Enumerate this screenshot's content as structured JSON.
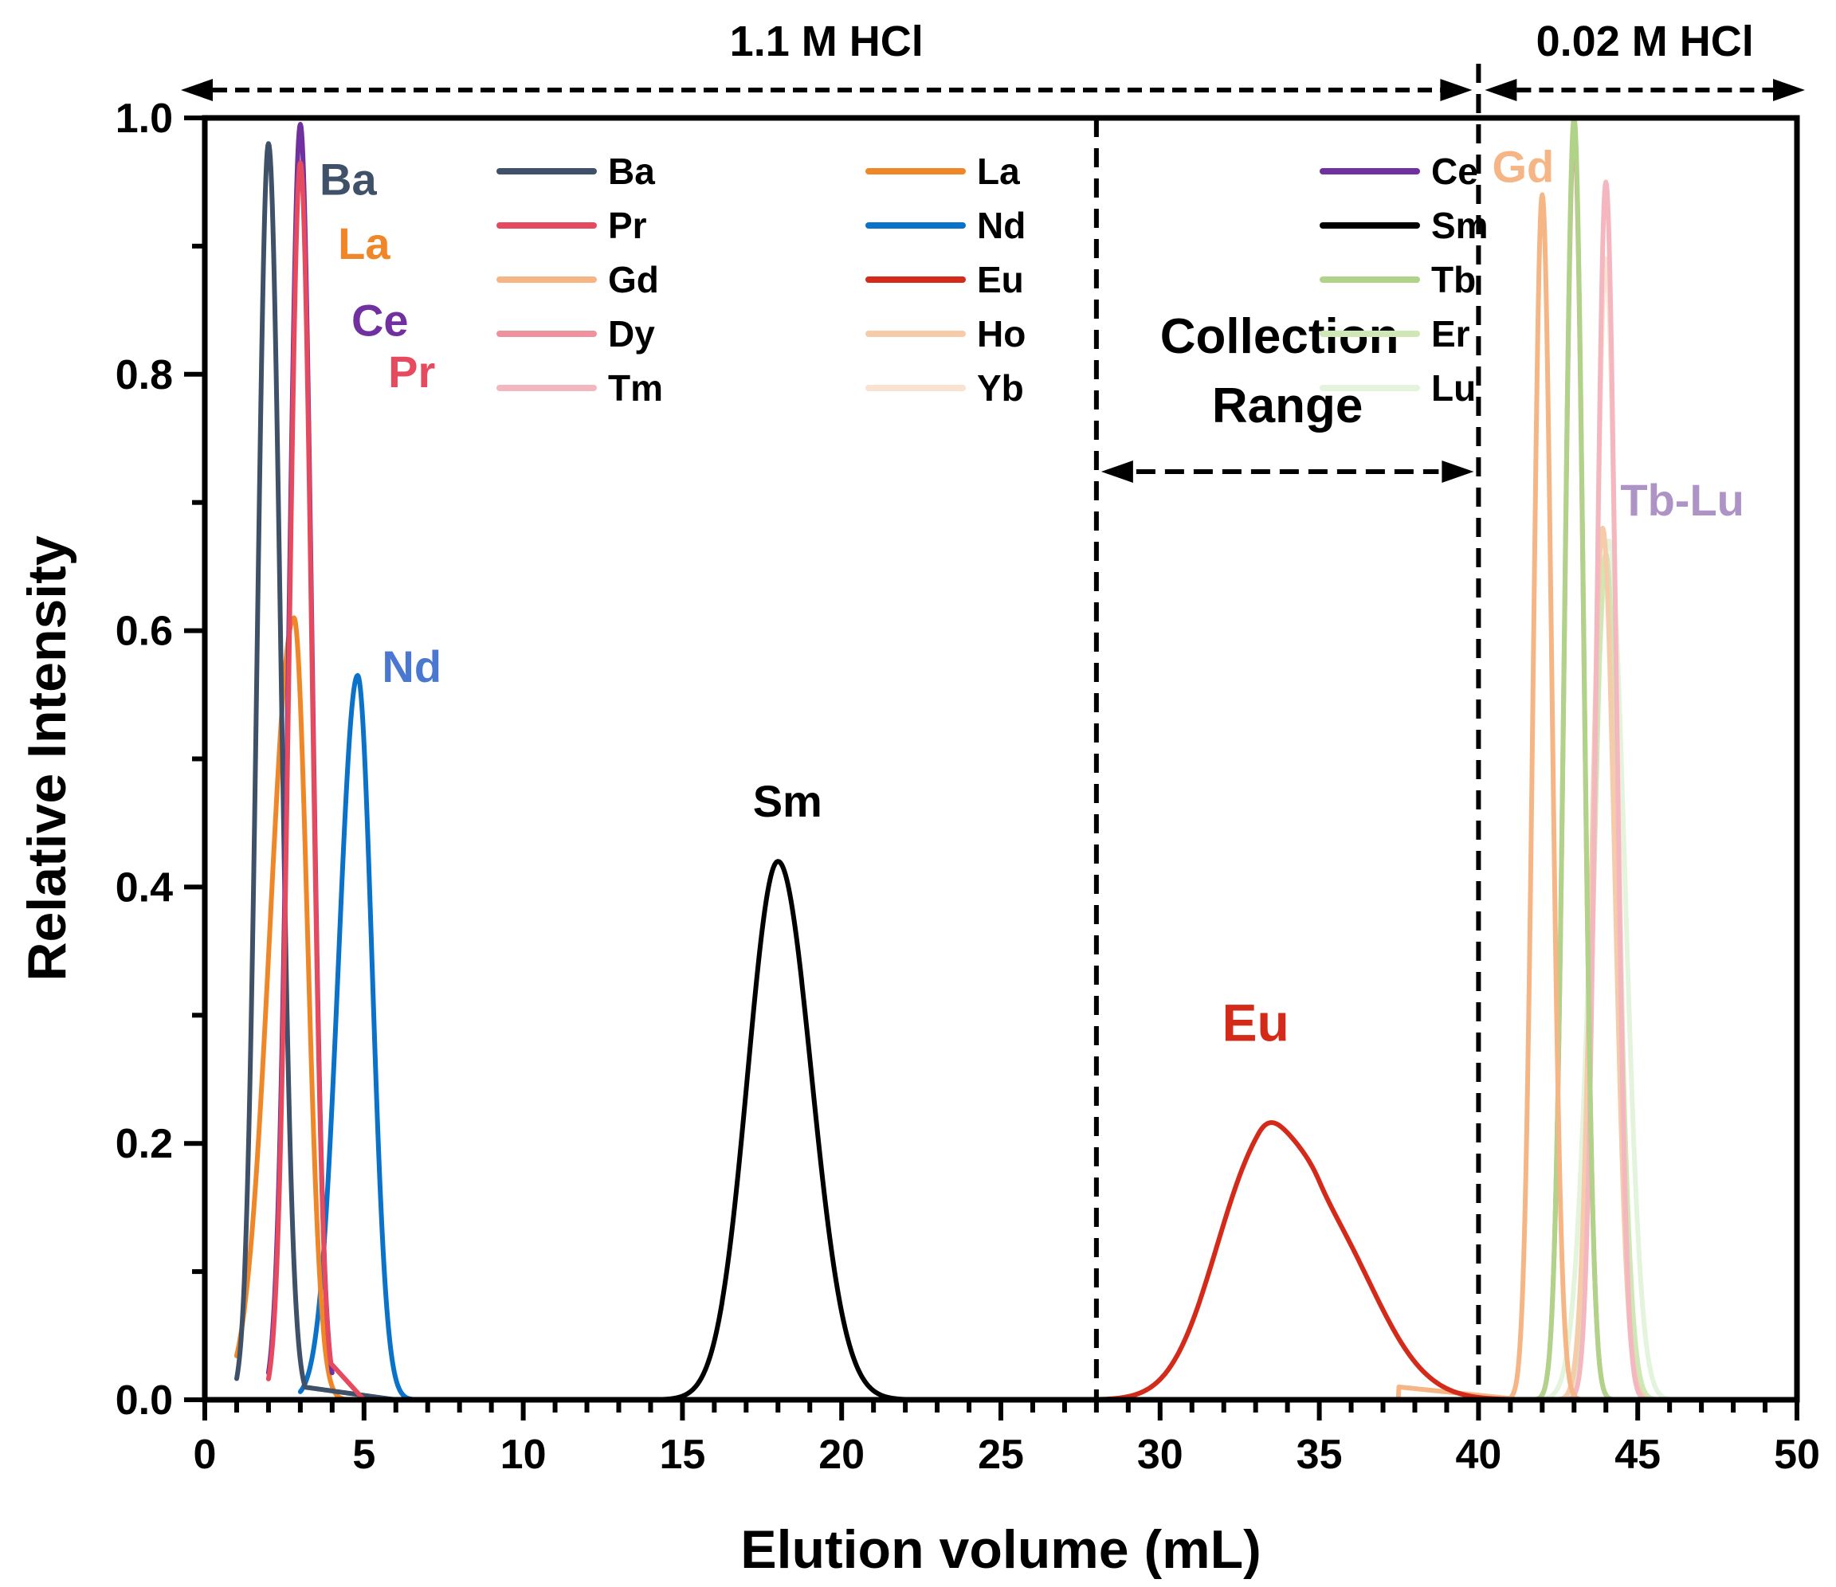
{
  "chart_data": {
    "type": "line",
    "title": "",
    "xlabel": "Elution volume (mL)",
    "ylabel": "Relative Intensity",
    "xlim": [
      0,
      50
    ],
    "ylim": [
      0,
      1.0
    ],
    "x_ticks": [
      0,
      5,
      10,
      15,
      20,
      25,
      30,
      35,
      40,
      45,
      50
    ],
    "x_minor_step": 1,
    "y_ticks": [
      "0.0",
      "0.2",
      "0.4",
      "0.6",
      "0.8",
      "1.0"
    ],
    "y_tick_values": [
      0,
      0.2,
      0.4,
      0.6,
      0.8,
      1.0
    ],
    "y_minor_step": 0.1,
    "grid": false,
    "legend": {
      "placement": "top-center",
      "columns": 3,
      "entries": [
        "Ba",
        "La",
        "Ce",
        "Pr",
        "Nd",
        "Sm",
        "Gd",
        "Eu",
        "Tb",
        "Dy",
        "Ho",
        "Er",
        "Tm",
        "Yb",
        "Lu"
      ]
    },
    "series": [
      {
        "name": "Ba",
        "color": "#3f5069",
        "peaks": [
          {
            "center": 2.0,
            "height": 0.98,
            "sigma_left": 0.35,
            "sigma_right": 0.38
          }
        ],
        "range": [
          1.0,
          15.0
        ],
        "tail": {
          "start": 3.1,
          "value": 0.01,
          "end": 6.0
        }
      },
      {
        "name": "La",
        "color": "#ef8729",
        "peaks": [
          {
            "center": 2.8,
            "height": 0.61,
            "sigma_left": 0.75,
            "sigma_right": 0.42
          }
        ],
        "range": [
          1.0,
          5.5
        ]
      },
      {
        "name": "Ce",
        "color": "#7030a0",
        "peaks": [
          {
            "center": 3.0,
            "height": 0.995,
            "sigma_left": 0.36,
            "sigma_right": 0.36
          }
        ],
        "range": [
          2.0,
          4.0
        ]
      },
      {
        "name": "Pr",
        "color": "#e64a5e",
        "peaks": [
          {
            "center": 3.0,
            "height": 0.965,
            "sigma_left": 0.35,
            "sigma_right": 0.36
          }
        ],
        "range": [
          2.0,
          5.0
        ],
        "tail": {
          "start": 3.9,
          "value": 0.03,
          "end": 5.0
        }
      },
      {
        "name": "Nd",
        "color": "#0a72c8",
        "peaks": [
          {
            "center": 4.8,
            "height": 0.565,
            "sigma_left": 0.6,
            "sigma_right": 0.45
          }
        ],
        "range": [
          3.0,
          16.0
        ]
      },
      {
        "name": "Sm",
        "color": "#000000",
        "peaks": [
          {
            "center": 18.0,
            "height": 0.42,
            "sigma_left": 0.95,
            "sigma_right": 1.05
          }
        ],
        "range": [
          6.0,
          26.0
        ]
      },
      {
        "name": "Gd",
        "color": "#f5b584",
        "peaks": [
          {
            "center": 42.0,
            "height": 0.94,
            "sigma_left": 0.28,
            "sigma_right": 0.3
          }
        ],
        "range": [
          35.0,
          44.0
        ],
        "tail": {
          "start": 37.5,
          "value": 0.01,
          "end": 41.4
        }
      },
      {
        "name": "Eu",
        "color": "#d42a1a",
        "peaks": [
          {
            "center": 33.1,
            "height": 0.185,
            "sigma_left": 1.4,
            "sigma_right": 1.0
          },
          {
            "center": 35.0,
            "height": 0.14,
            "sigma_left": 1.0,
            "sigma_right": 1.7
          }
        ],
        "range": [
          16.0,
          45.0
        ]
      },
      {
        "name": "Tb",
        "color": "#b0d389",
        "peaks": [
          {
            "center": 43.0,
            "height": 1.0,
            "sigma_left": 0.3,
            "sigma_right": 0.3
          }
        ],
        "range": [
          41.0,
          46.0
        ]
      },
      {
        "name": "Dy",
        "color": "#ee939e",
        "peaks": [
          {
            "center": 43.0,
            "height": 0.99,
            "sigma_left": 0.3,
            "sigma_right": 0.3
          }
        ],
        "range": [
          41.5,
          45.0
        ]
      },
      {
        "name": "Ho",
        "color": "#f6cbaa",
        "peaks": [
          {
            "center": 43.9,
            "height": 0.68,
            "sigma_left": 0.35,
            "sigma_right": 0.38
          }
        ],
        "range": [
          41.0,
          46.0
        ]
      },
      {
        "name": "Er",
        "color": "#cfe6b5",
        "peaks": [
          {
            "center": 44.0,
            "height": 0.66,
            "sigma_left": 0.38,
            "sigma_right": 0.4
          }
        ],
        "range": [
          41.0,
          46.0
        ]
      },
      {
        "name": "Tm",
        "color": "#f4b6bf",
        "peaks": [
          {
            "center": 44.0,
            "height": 0.95,
            "sigma_left": 0.3,
            "sigma_right": 0.32
          }
        ],
        "range": [
          42.0,
          46.0
        ]
      },
      {
        "name": "Yb",
        "color": "#f9e2d2",
        "peaks": [
          {
            "center": 44.0,
            "height": 0.89,
            "sigma_left": 0.33,
            "sigma_right": 0.35
          }
        ],
        "range": [
          41.0,
          46.0
        ]
      },
      {
        "name": "Lu",
        "color": "#e4f3dc",
        "peaks": [
          {
            "center": 44.1,
            "height": 0.67,
            "sigma_left": 0.55,
            "sigma_right": 0.5
          }
        ],
        "range": [
          40.0,
          50.0
        ]
      }
    ],
    "annotations": {
      "peak_labels": [
        {
          "text": "Ba",
          "color": "#3f5069",
          "x": 4.5,
          "y": 0.94
        },
        {
          "text": "La",
          "color": "#ef8729",
          "x": 5.0,
          "y": 0.89
        },
        {
          "text": "Ce",
          "color": "#7030a0",
          "x": 5.5,
          "y": 0.83
        },
        {
          "text": "Pr",
          "color": "#e64a5e",
          "x": 6.5,
          "y": 0.79
        },
        {
          "text": "Nd",
          "color": "#4a78d0",
          "x": 6.5,
          "y": 0.56
        },
        {
          "text": "Sm",
          "color": "#000000",
          "x": 18.3,
          "y": 0.455
        },
        {
          "text": "Eu",
          "color": "#d42a1a",
          "x": 33.0,
          "y": 0.28
        },
        {
          "text": "Gd",
          "color": "#f5b584",
          "x": 41.4,
          "y": 0.95
        },
        {
          "text": "Tb-Lu",
          "color": "#ae93c6",
          "x": 46.4,
          "y": 0.69
        }
      ],
      "regions": [
        {
          "text": "1.1 M HCl",
          "from": 0,
          "to": 40
        },
        {
          "text": "0.02 M HCl",
          "from": 40,
          "to": 50
        }
      ],
      "collection_range": {
        "text_line1": "Collection",
        "text_line2": "Range",
        "from": 28,
        "to": 40
      }
    }
  }
}
